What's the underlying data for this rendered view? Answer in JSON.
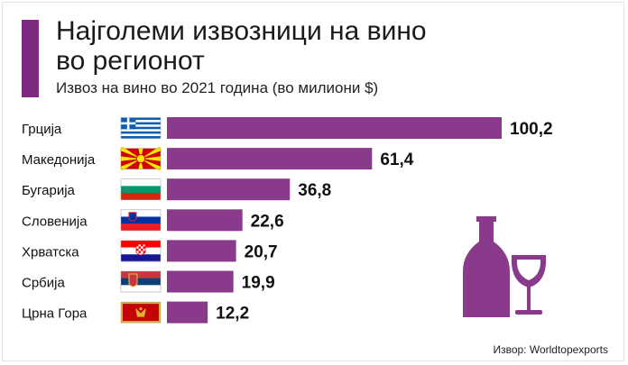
{
  "header": {
    "title_line1": "Најголеми извозници на вино",
    "title_line2": "во регионот",
    "subtitle": "Извоз на вино во 2021 година (во милиони $)"
  },
  "source": "Извор: Worldtopexports",
  "colors": {
    "accent": "#7e2b7f",
    "bar": "#8a3a8a",
    "icon": "#8a3a8a"
  },
  "icons": {
    "decoration": "wine-bottle-and-glass-icon"
  },
  "chart_data": {
    "type": "bar",
    "orientation": "horizontal",
    "categories": [
      "Грција",
      "Македонија",
      "Бугарија",
      "Словенија",
      "Хрватска",
      "Србија",
      "Црна Гора"
    ],
    "values": [
      100.2,
      61.4,
      36.8,
      22.6,
      20.7,
      19.9,
      12.2
    ],
    "value_labels": [
      "100,2",
      "61,4",
      "36,8",
      "22,6",
      "20,7",
      "19,9",
      "12,2"
    ],
    "flags": [
      "greece",
      "north-macedonia",
      "bulgaria",
      "slovenia",
      "croatia",
      "serbia",
      "montenegro"
    ],
    "grid": false,
    "legend": "none"
  }
}
